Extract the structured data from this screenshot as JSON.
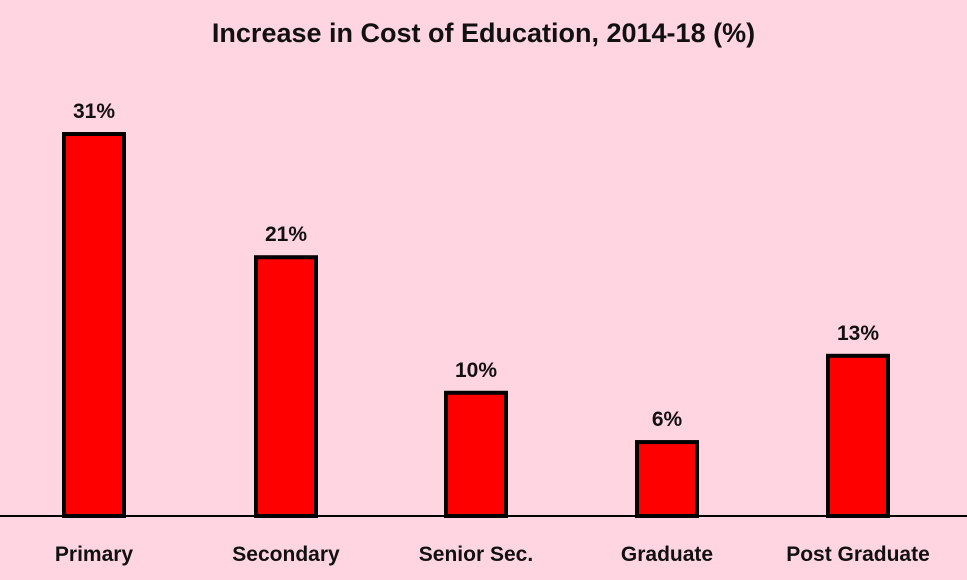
{
  "chart_data": {
    "type": "bar",
    "title": "Increase in Cost of Education, 2014-18 (%)",
    "categories": [
      "Primary",
      "Secondary",
      "Senior Sec.",
      "Graduate",
      "Post Graduate"
    ],
    "values": [
      31,
      21,
      10,
      6,
      13
    ],
    "data_labels": [
      "31%",
      "21%",
      "10%",
      "6%",
      "13%"
    ],
    "ylim": [
      0,
      31
    ],
    "grid": false,
    "legend": "none",
    "bar_color": "#ff0000",
    "bar_border_color": "#000000",
    "background_color": "#ffd5e2"
  }
}
